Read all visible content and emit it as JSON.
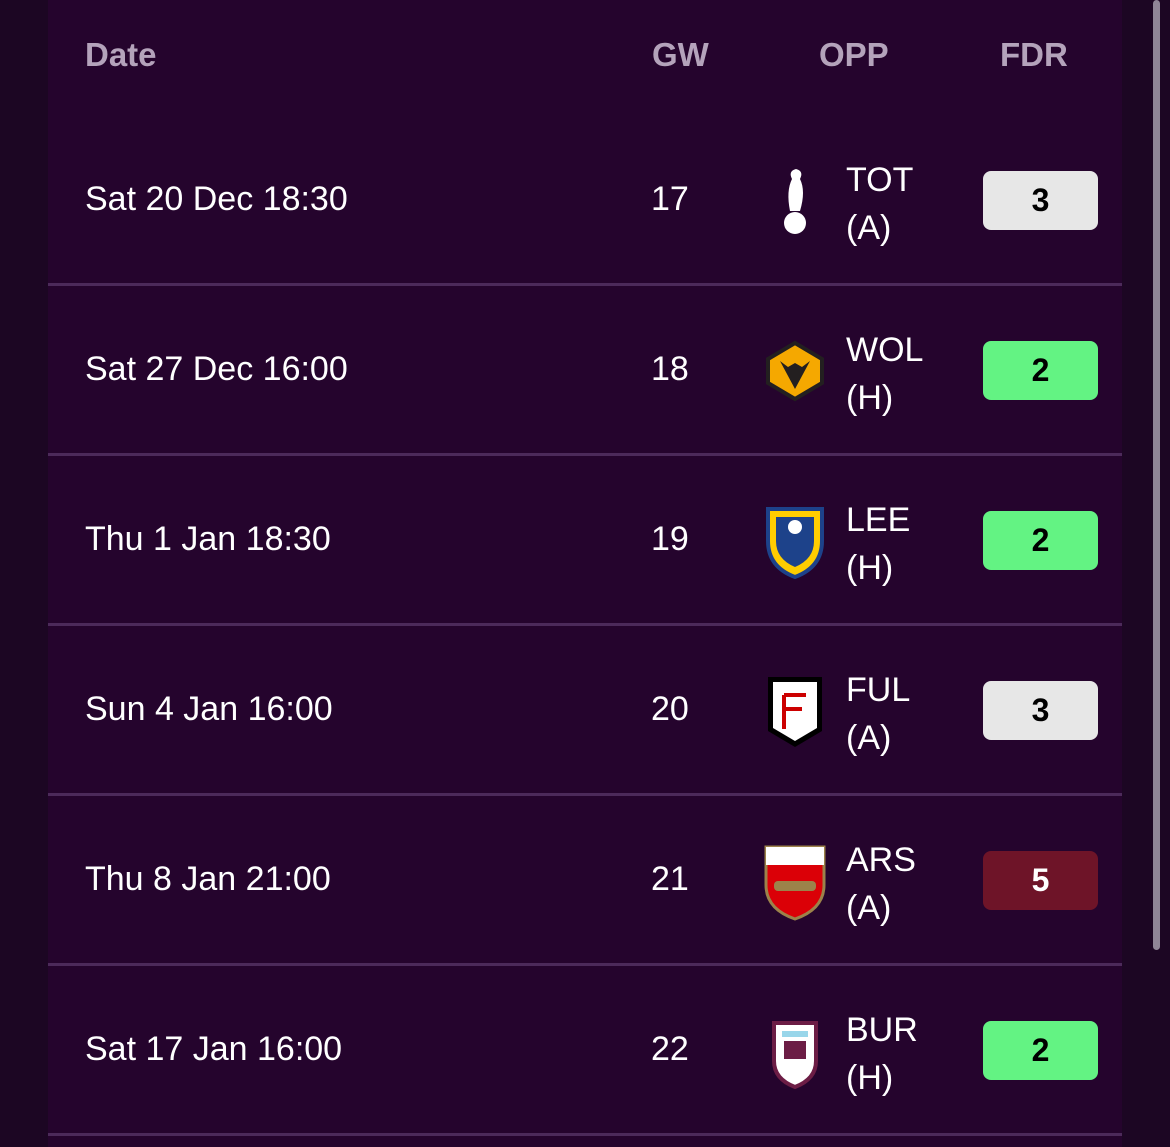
{
  "header": {
    "date": "Date",
    "gw": "GW",
    "opp": "OPP",
    "fdr": "FDR"
  },
  "rows": [
    {
      "date": "Sat 20 Dec 18:30",
      "gw": 17,
      "team": "TOT",
      "venue": "(A)",
      "fdr": 3,
      "fdr_color": "#e7e7e7",
      "fdr_text_color": "#000000"
    },
    {
      "date": "Sat 27 Dec 16:00",
      "gw": 18,
      "team": "WOL",
      "venue": "(H)",
      "fdr": 2,
      "fdr_color": "#63f383",
      "fdr_text_color": "#000000"
    },
    {
      "date": "Thu 1 Jan 18:30",
      "gw": 19,
      "team": "LEE",
      "venue": "(H)",
      "fdr": 2,
      "fdr_color": "#63f383",
      "fdr_text_color": "#000000"
    },
    {
      "date": "Sun 4 Jan 16:00",
      "gw": 20,
      "team": "FUL",
      "venue": "(A)",
      "fdr": 3,
      "fdr_color": "#e7e7e7",
      "fdr_text_color": "#000000"
    },
    {
      "date": "Thu 8 Jan 21:00",
      "gw": 21,
      "team": "ARS",
      "venue": "(A)",
      "fdr": 5,
      "fdr_color": "#6e1428",
      "fdr_text_color": "#ffffff"
    },
    {
      "date": "Sat 17 Jan 16:00",
      "gw": 22,
      "team": "BUR",
      "venue": "(H)",
      "fdr": 2,
      "fdr_color": "#63f383",
      "fdr_text_color": "#000000"
    }
  ]
}
